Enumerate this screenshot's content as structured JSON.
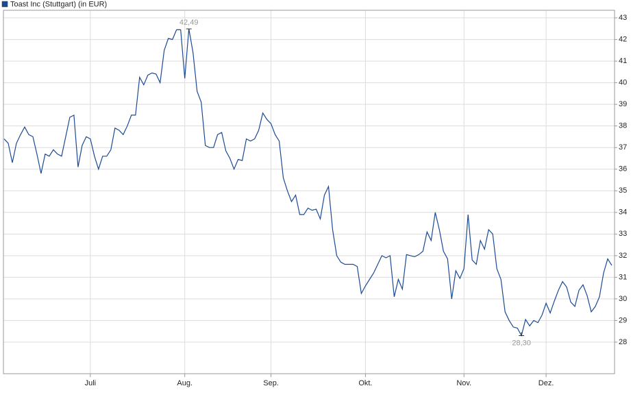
{
  "chart_data": {
    "type": "line",
    "categories": [
      null,
      null,
      null,
      null,
      null,
      null,
      null,
      null,
      null,
      null,
      null,
      null,
      null,
      null,
      null,
      null,
      null,
      null,
      null,
      null,
      null,
      "Juli",
      null,
      null,
      null,
      null,
      null,
      null,
      null,
      null,
      null,
      null,
      null,
      null,
      null,
      null,
      null,
      null,
      null,
      null,
      null,
      null,
      null,
      null,
      "Aug.",
      null,
      null,
      null,
      null,
      null,
      null,
      null,
      null,
      null,
      null,
      null,
      null,
      null,
      null,
      null,
      null,
      null,
      null,
      null,
      null,
      "Sep.",
      null,
      null,
      null,
      null,
      null,
      null,
      null,
      null,
      null,
      null,
      null,
      null,
      null,
      null,
      null,
      null,
      null,
      null,
      null,
      null,
      null,
      null,
      "Okt.",
      null,
      null,
      null,
      null,
      null,
      null,
      null,
      null,
      null,
      null,
      null,
      null,
      null,
      null,
      null,
      null,
      null,
      null,
      null,
      null,
      null,
      null,
      null,
      "Nov.",
      null,
      null,
      null,
      null,
      null,
      null,
      null,
      null,
      null,
      null,
      null,
      null,
      null,
      null,
      null,
      null,
      null,
      null,
      null,
      "Dez.",
      null,
      null,
      null,
      null,
      null,
      null,
      null,
      null,
      null,
      null,
      null,
      null,
      null,
      null,
      null,
      null
    ],
    "series": [
      {
        "name": "Toast Inc (Stuttgart) (in EUR)",
        "color": "#1a4a94",
        "values": [
          37.4,
          37.2,
          36.3,
          37.2,
          37.6,
          37.95,
          37.6,
          37.5,
          36.7,
          35.8,
          36.7,
          36.6,
          36.9,
          36.7,
          36.6,
          37.5,
          38.4,
          38.5,
          36.1,
          37.1,
          37.5,
          37.4,
          36.6,
          36.0,
          36.6,
          36.6,
          36.9,
          37.9,
          37.8,
          37.6,
          38.0,
          38.5,
          38.5,
          40.25,
          39.9,
          40.35,
          40.45,
          40.4,
          40.0,
          41.5,
          42.05,
          42.0,
          42.45,
          42.45,
          40.2,
          42.49,
          41.4,
          39.6,
          39.1,
          37.1,
          37.0,
          37.0,
          37.6,
          37.7,
          36.85,
          36.5,
          36.0,
          36.45,
          36.4,
          37.4,
          37.3,
          37.4,
          37.8,
          38.6,
          38.3,
          38.1,
          37.6,
          37.3,
          35.6,
          35.0,
          34.5,
          34.8,
          33.9,
          33.9,
          34.2,
          34.1,
          34.15,
          33.7,
          34.8,
          35.2,
          33.2,
          32.0,
          31.7,
          31.6,
          31.6,
          31.6,
          31.5,
          30.25,
          30.6,
          30.9,
          31.2,
          31.6,
          32.0,
          31.9,
          32.0,
          30.1,
          30.9,
          30.45,
          32.05,
          32.0,
          31.95,
          32.05,
          32.2,
          33.1,
          32.7,
          34.0,
          33.2,
          32.2,
          31.85,
          30.0,
          31.3,
          30.95,
          31.4,
          33.9,
          31.8,
          31.6,
          32.7,
          32.3,
          33.2,
          33.0,
          31.4,
          30.9,
          29.4,
          29.0,
          28.7,
          28.65,
          28.3,
          29.05,
          28.75,
          29.0,
          28.9,
          29.25,
          29.8,
          29.35,
          29.9,
          30.4,
          30.8,
          30.55,
          29.85,
          29.65,
          30.4,
          30.65,
          30.15,
          29.4,
          29.65,
          30.1,
          31.2,
          31.85,
          31.55
        ],
        "value_labels": [
          null,
          null,
          null,
          null,
          null,
          null,
          null,
          null,
          null,
          null,
          null,
          null,
          null,
          null,
          null,
          null,
          null,
          null,
          null,
          null,
          null,
          null,
          null,
          null,
          null,
          null,
          null,
          null,
          null,
          null,
          null,
          null,
          null,
          null,
          null,
          null,
          null,
          null,
          null,
          null,
          null,
          null,
          null,
          null,
          null,
          "42,49",
          null,
          null,
          null,
          null,
          null,
          null,
          null,
          null,
          null,
          null,
          null,
          null,
          null,
          null,
          null,
          null,
          null,
          null,
          null,
          null,
          null,
          null,
          null,
          null,
          null,
          null,
          null,
          null,
          null,
          null,
          null,
          null,
          null,
          null,
          null,
          null,
          null,
          null,
          null,
          null,
          null,
          null,
          null,
          null,
          null,
          null,
          null,
          null,
          null,
          null,
          null,
          null,
          null,
          null,
          null,
          null,
          null,
          null,
          null,
          null,
          null,
          null,
          null,
          null,
          null,
          null,
          null,
          null,
          null,
          null,
          null,
          null,
          null,
          null,
          null,
          null,
          null,
          null,
          null,
          null,
          "28,30",
          null,
          null,
          null,
          null,
          null,
          null,
          null,
          null,
          null,
          null,
          null,
          null,
          null,
          null,
          null,
          null,
          null,
          null,
          null,
          null,
          null
        ]
      }
    ],
    "ylim": [
      26.54,
      43.35
    ],
    "yticks": [
      28,
      29,
      30,
      31,
      32,
      33,
      34,
      35,
      36,
      37,
      38,
      39,
      40,
      41,
      42,
      43
    ],
    "grid": true,
    "legend": "top-left"
  }
}
